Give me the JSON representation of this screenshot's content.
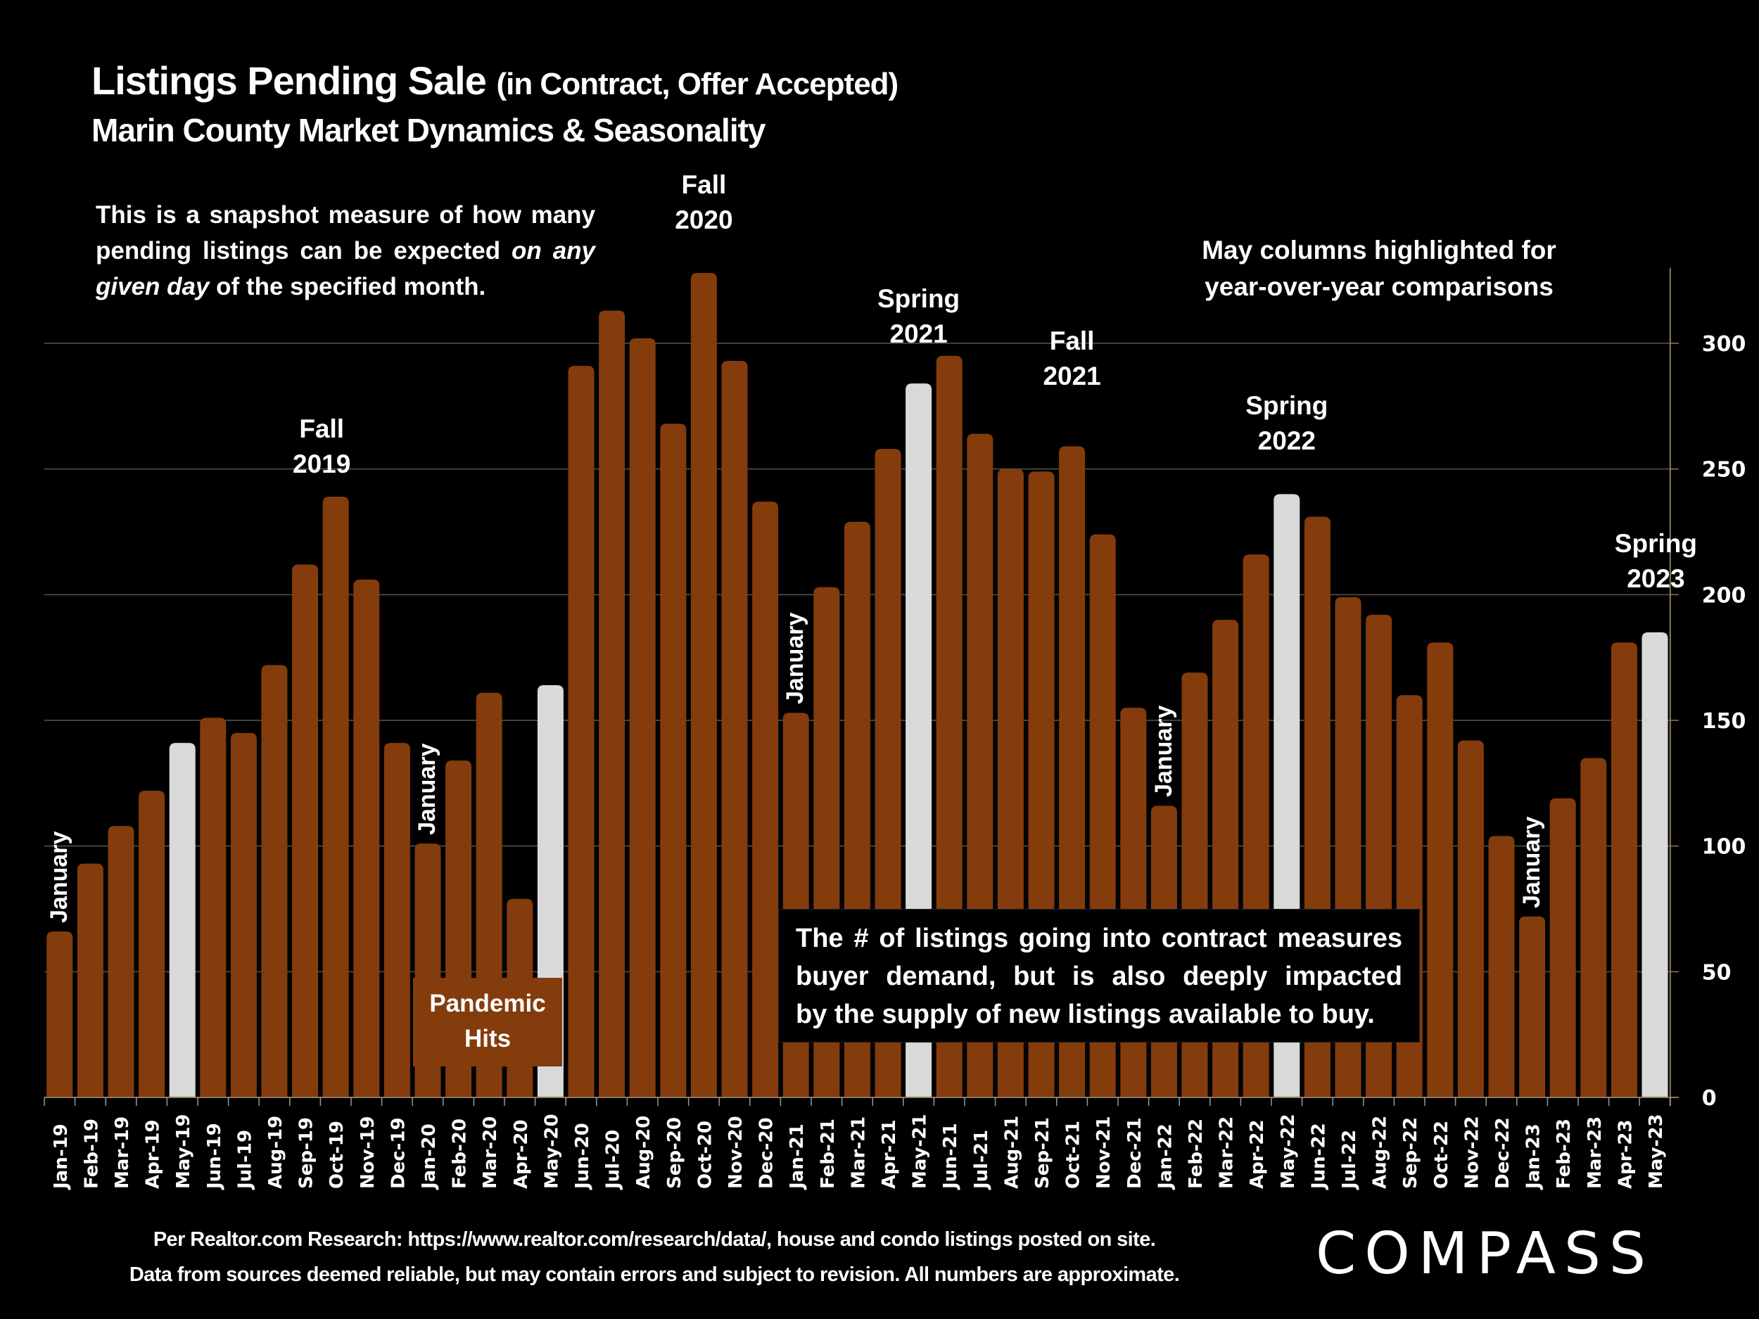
{
  "header": {
    "title_main": "Listings Pending Sale",
    "title_paren": "(in Contract, Offer Accepted)",
    "subtitle": "Marin County Market Dynamics & Seasonality"
  },
  "intro": {
    "text_1": "This is a snapshot measure of how many pending listings can be expected ",
    "text_italic_1": "on any given day",
    "text_2": " of the specified month."
  },
  "may_note": {
    "line1": "May columns highlighted for",
    "line2": "year-over-year comparisons"
  },
  "season_labels": [
    {
      "line1": "Fall",
      "line2": "2019",
      "month": "Oct-19"
    },
    {
      "line1": "Fall",
      "line2": "2020",
      "month": "Oct-20"
    },
    {
      "line1": "Spring",
      "line2": "2021",
      "month": "May-21"
    },
    {
      "line1": "Fall",
      "line2": "2021",
      "month": "Oct-21"
    },
    {
      "line1": "Spring",
      "line2": "2022",
      "month": "May-22"
    },
    {
      "line1": "Spring",
      "line2": "2023",
      "month": "Apr-23"
    }
  ],
  "january_label": "January",
  "pandemic": {
    "line1": "Pandemic",
    "line2": "Hits"
  },
  "demand_box": {
    "line1": "The # of listings going into contract measures",
    "line2": "buyer demand, but is also deeply impacted",
    "line3": "by the supply of new listings available to buy."
  },
  "footer": {
    "line1": "Per Realtor.com Research:  https://www.realtor.com/research/data/, house and condo listings posted on site.",
    "line2": "Data from sources deemed reliable, but may contain errors and subject to revision. All numbers are approximate."
  },
  "logo": "COMPASS",
  "colors": {
    "bar": "#843C0C",
    "highlight": "#D9D9D9",
    "background": "#000000",
    "text": "#FFFFFF",
    "gridline": "#555555",
    "axis": "#8C7A5A"
  },
  "chart_data": {
    "type": "bar",
    "title": "Listings Pending Sale (in Contract, Offer Accepted)",
    "subtitle": "Marin County Market Dynamics & Seasonality",
    "xlabel": "",
    "ylabel": "",
    "ylim": [
      0,
      330
    ],
    "yticks": [
      0,
      50,
      100,
      150,
      200,
      250,
      300
    ],
    "y_axis_side": "right",
    "grid": true,
    "highlighted_categories": [
      "May-19",
      "May-20",
      "May-21",
      "May-22",
      "May-23"
    ],
    "categories": [
      "Jan-19",
      "Feb-19",
      "Mar-19",
      "Apr-19",
      "May-19",
      "Jun-19",
      "Jul-19",
      "Aug-19",
      "Sep-19",
      "Oct-19",
      "Nov-19",
      "Dec-19",
      "Jan-20",
      "Feb-20",
      "Mar-20",
      "Apr-20",
      "May-20",
      "Jun-20",
      "Jul-20",
      "Aug-20",
      "Sep-20",
      "Oct-20",
      "Nov-20",
      "Dec-20",
      "Jan-21",
      "Feb-21",
      "Mar-21",
      "Apr-21",
      "May-21",
      "Jun-21",
      "Jul-21",
      "Aug-21",
      "Sep-21",
      "Oct-21",
      "Nov-21",
      "Dec-21",
      "Jan-22",
      "Feb-22",
      "Mar-22",
      "Apr-22",
      "May-22",
      "Jun-22",
      "Jul-22",
      "Aug-22",
      "Sep-22",
      "Oct-22",
      "Nov-22",
      "Dec-22",
      "Jan-23",
      "Feb-23",
      "Mar-23",
      "Apr-23",
      "May-23"
    ],
    "values": [
      66,
      93,
      108,
      122,
      141,
      151,
      145,
      172,
      212,
      239,
      206,
      141,
      101,
      134,
      161,
      79,
      164,
      291,
      313,
      302,
      268,
      328,
      293,
      237,
      153,
      203,
      229,
      258,
      284,
      295,
      264,
      250,
      249,
      259,
      224,
      155,
      116,
      169,
      190,
      216,
      240,
      231,
      199,
      192,
      160,
      181,
      142,
      104,
      72,
      119,
      135,
      181,
      185
    ]
  }
}
